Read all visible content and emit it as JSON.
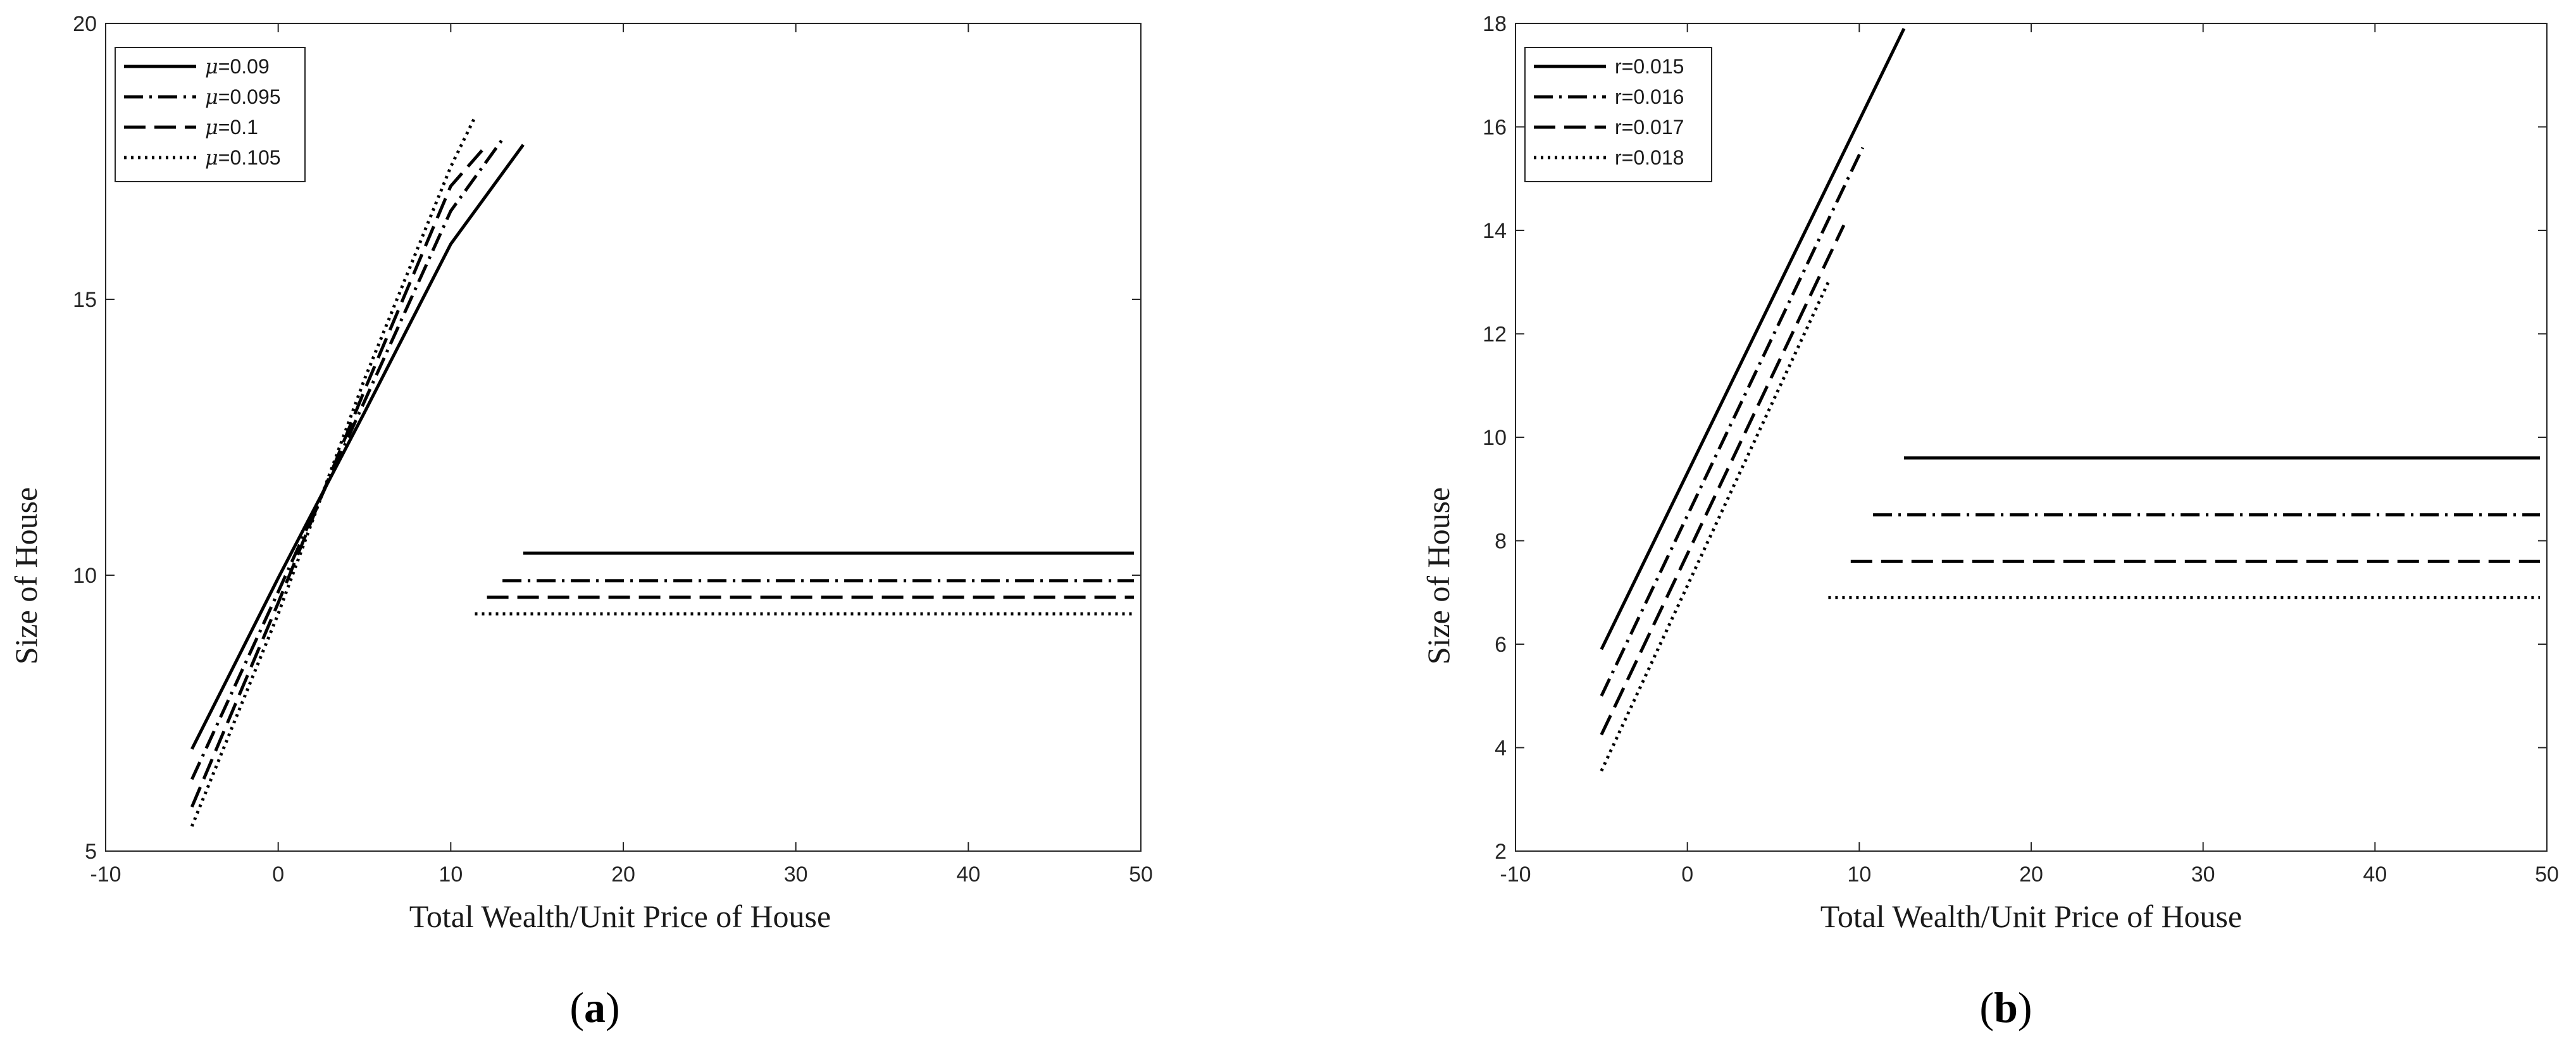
{
  "styles": {
    "line_color": "#000000",
    "axis_color": "#262626",
    "background": "#ffffff",
    "legend_border": "#262626"
  },
  "chart_data": [
    {
      "type": "line",
      "caption": {
        "open": "(",
        "letter": "a",
        "close": ")"
      },
      "xlabel": "Total Wealth/Unit Price of House",
      "ylabel": "Size of House",
      "xlim": [
        -10,
        50
      ],
      "ylim": [
        5,
        20
      ],
      "xticks": [
        -10,
        0,
        10,
        20,
        30,
        40,
        50
      ],
      "yticks": [
        5,
        10,
        15,
        20
      ],
      "grid": false,
      "legend_position": "top-left",
      "series": [
        {
          "name_symbol": "μ",
          "name_value": "=0.09",
          "dash": "solid",
          "segments": [
            [
              [
                -5,
                6.85
              ],
              [
                0,
                9.95
              ],
              [
                5,
                12.95
              ],
              [
                10,
                16.0
              ],
              [
                14.2,
                17.8
              ]
            ],
            [
              [
                14.2,
                10.4
              ],
              [
                49.6,
                10.4
              ]
            ]
          ]
        },
        {
          "name_symbol": "μ",
          "name_value": "=0.095",
          "dash": "dashdot",
          "segments": [
            [
              [
                -5,
                6.3
              ],
              [
                0,
                9.7
              ],
              [
                5,
                13.15
              ],
              [
                10,
                16.6
              ],
              [
                13,
                17.9
              ]
            ],
            [
              [
                13,
                9.9
              ],
              [
                49.6,
                9.9
              ]
            ]
          ]
        },
        {
          "name_symbol": "μ",
          "name_value": "=0.1",
          "dash": "dashed",
          "segments": [
            [
              [
                -5,
                5.8
              ],
              [
                0,
                9.5
              ],
              [
                5,
                13.35
              ],
              [
                10,
                17.05
              ],
              [
                12.1,
                17.8
              ]
            ],
            [
              [
                12.1,
                9.6
              ],
              [
                49.6,
                9.6
              ]
            ]
          ]
        },
        {
          "name_symbol": "μ",
          "name_value": "=0.105",
          "dash": "dotted",
          "segments": [
            [
              [
                -5,
                5.45
              ],
              [
                0,
                9.3
              ],
              [
                5,
                13.55
              ],
              [
                10,
                17.4
              ],
              [
                11.4,
                18.3
              ]
            ],
            [
              [
                11.4,
                9.3
              ],
              [
                49.6,
                9.3
              ]
            ]
          ]
        }
      ]
    },
    {
      "type": "line",
      "caption": {
        "open": "(",
        "letter": "b",
        "close": ")"
      },
      "xlabel": "Total Wealth/Unit Price of House",
      "ylabel": "Size of House",
      "xlim": [
        -10,
        50
      ],
      "ylim": [
        2,
        18
      ],
      "xticks": [
        -10,
        0,
        10,
        20,
        30,
        40,
        50
      ],
      "yticks": [
        2,
        4,
        6,
        8,
        10,
        12,
        14,
        16,
        18
      ],
      "grid": false,
      "legend_position": "top-left",
      "series": [
        {
          "name_symbol": "",
          "name_value": "r=0.015",
          "dash": "solid",
          "segments": [
            [
              [
                -5,
                5.9
              ],
              [
                12.6,
                17.9
              ]
            ],
            [
              [
                12.6,
                9.6
              ],
              [
                49.6,
                9.6
              ]
            ]
          ]
        },
        {
          "name_symbol": "",
          "name_value": "r=0.016",
          "dash": "dashdot",
          "segments": [
            [
              [
                -5,
                5.0
              ],
              [
                10.2,
                15.6
              ]
            ],
            [
              [
                10.8,
                8.5
              ],
              [
                49.6,
                8.5
              ]
            ]
          ]
        },
        {
          "name_symbol": "",
          "name_value": "r=0.017",
          "dash": "dashed",
          "segments": [
            [
              [
                -5,
                4.25
              ],
              [
                9.1,
                14.1
              ]
            ],
            [
              [
                9.5,
                7.6
              ],
              [
                49.6,
                7.6
              ]
            ]
          ]
        },
        {
          "name_symbol": "",
          "name_value": "r=0.018",
          "dash": "dotted",
          "segments": [
            [
              [
                -5,
                3.55
              ],
              [
                8.2,
                13.0
              ]
            ],
            [
              [
                8.2,
                6.9
              ],
              [
                49.6,
                6.9
              ]
            ]
          ]
        }
      ]
    }
  ]
}
